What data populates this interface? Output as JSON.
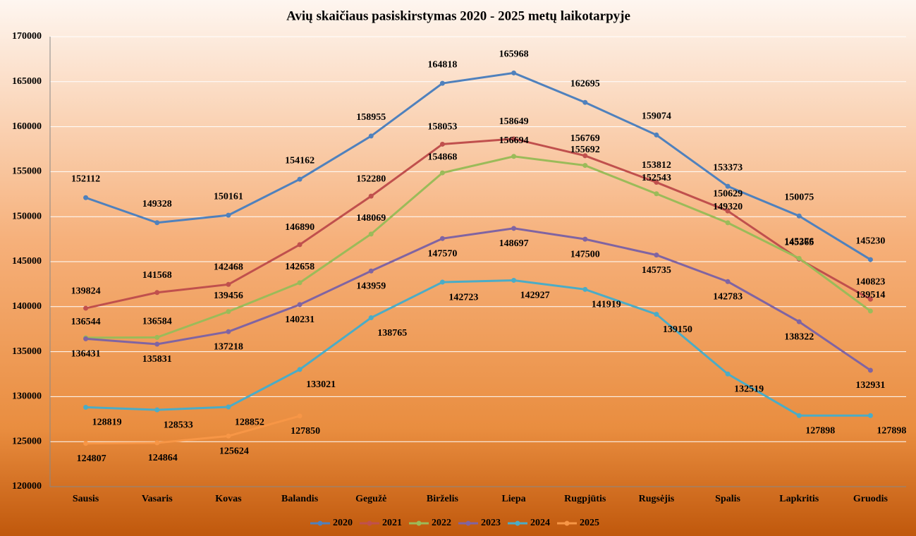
{
  "chart_data": {
    "type": "line",
    "title": "Avių skaičiaus pasiskirstymas  2020 - 2025 metų laikotarpyje",
    "categories": [
      "Sausis",
      "Vasaris",
      "Kovas",
      "Balandis",
      "Gegužė",
      "Birželis",
      "Liepa",
      "Rugpjūtis",
      "Rugsėjis",
      "Spalis",
      "Lapkritis",
      "Gruodis"
    ],
    "series": [
      {
        "name": "2020",
        "color": "#4f81bd",
        "values": [
          152112,
          149328,
          150161,
          154162,
          158955,
          164818,
          165968,
          162695,
          159074,
          153373,
          150075,
          145230
        ]
      },
      {
        "name": "2021",
        "color": "#c0504d",
        "values": [
          139824,
          141568,
          142468,
          146890,
          152280,
          158053,
          158649,
          156769,
          153812,
          150629,
          145276,
          140823
        ]
      },
      {
        "name": "2022",
        "color": "#9bbb59",
        "values": [
          136544,
          136584,
          139456,
          142658,
          148069,
          154868,
          156694,
          155692,
          152543,
          149320,
          145365,
          139514
        ]
      },
      {
        "name": "2023",
        "color": "#8064a2",
        "values": [
          136431,
          135831,
          137218,
          140231,
          143959,
          147570,
          148697,
          147500,
          145735,
          142783,
          138322,
          132931
        ]
      },
      {
        "name": "2024",
        "color": "#4bacc6",
        "values": [
          128819,
          128533,
          128852,
          133021,
          138765,
          142723,
          142927,
          141919,
          139150,
          132519,
          127898,
          127898
        ]
      },
      {
        "name": "2025",
        "color": "#f79646",
        "values": [
          124807,
          124864,
          125624,
          127850,
          null,
          null,
          null,
          null,
          null,
          null,
          null,
          null
        ]
      }
    ],
    "ylim": [
      120000,
      170000
    ],
    "yticks": [
      120000,
      125000,
      130000,
      135000,
      140000,
      145000,
      150000,
      155000,
      160000,
      165000,
      170000
    ],
    "grid": true,
    "legend": "bottom"
  }
}
